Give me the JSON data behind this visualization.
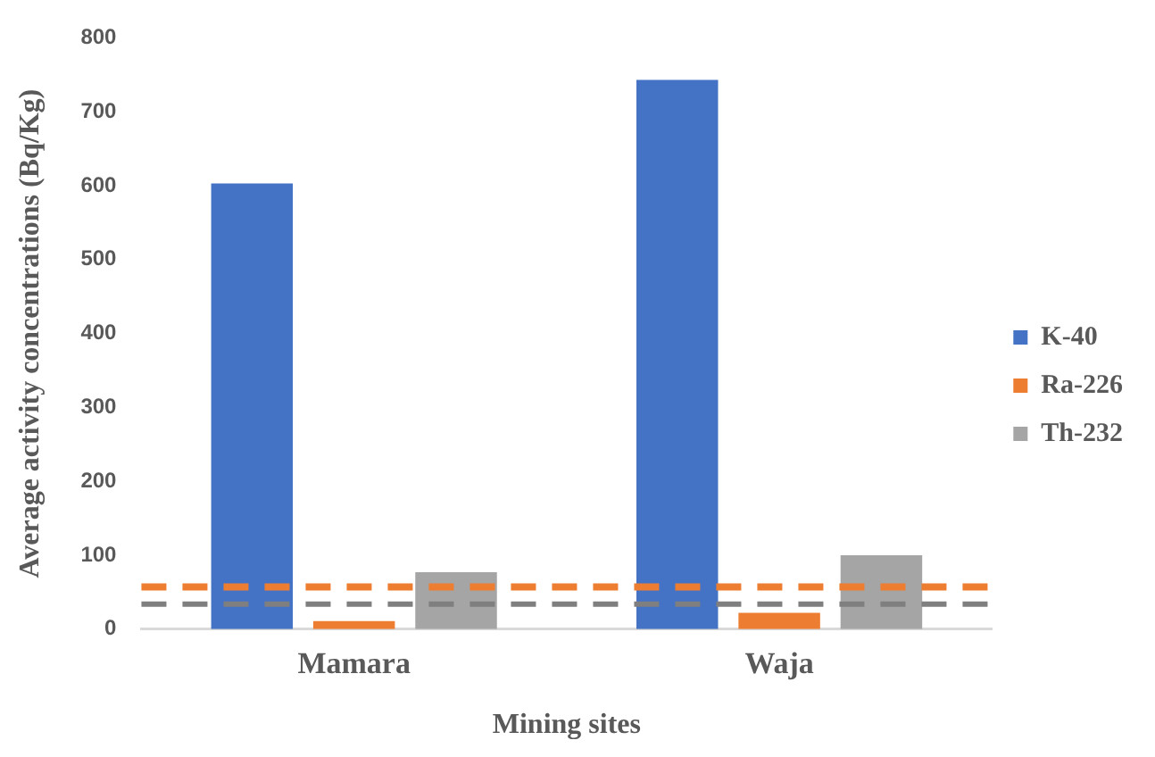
{
  "chart_data": {
    "type": "bar",
    "xlabel": "Mining sites",
    "ylabel": "Average activity concentrations (Bq/Kg)",
    "categories": [
      "Mamara",
      "Waja"
    ],
    "series": [
      {
        "name": "K-40",
        "color": "#4472c4",
        "values": [
          603,
          743
        ]
      },
      {
        "name": "Ra-226",
        "color": "#ed7d31",
        "values": [
          11,
          22
        ]
      },
      {
        "name": "Th-232",
        "color": "#a5a5a5",
        "values": [
          77,
          100
        ]
      }
    ],
    "ylim": [
      0,
      800
    ],
    "yticks": [
      0,
      100,
      200,
      300,
      400,
      500,
      600,
      700,
      800
    ],
    "grid": false,
    "legend": "right",
    "ref_lines": [
      {
        "axis": "y",
        "value": 57,
        "color": "#ed7d31",
        "line_style": "dashed"
      },
      {
        "axis": "y",
        "value": 34,
        "color": "#7f7f7f",
        "line_style": "dashed"
      }
    ]
  }
}
